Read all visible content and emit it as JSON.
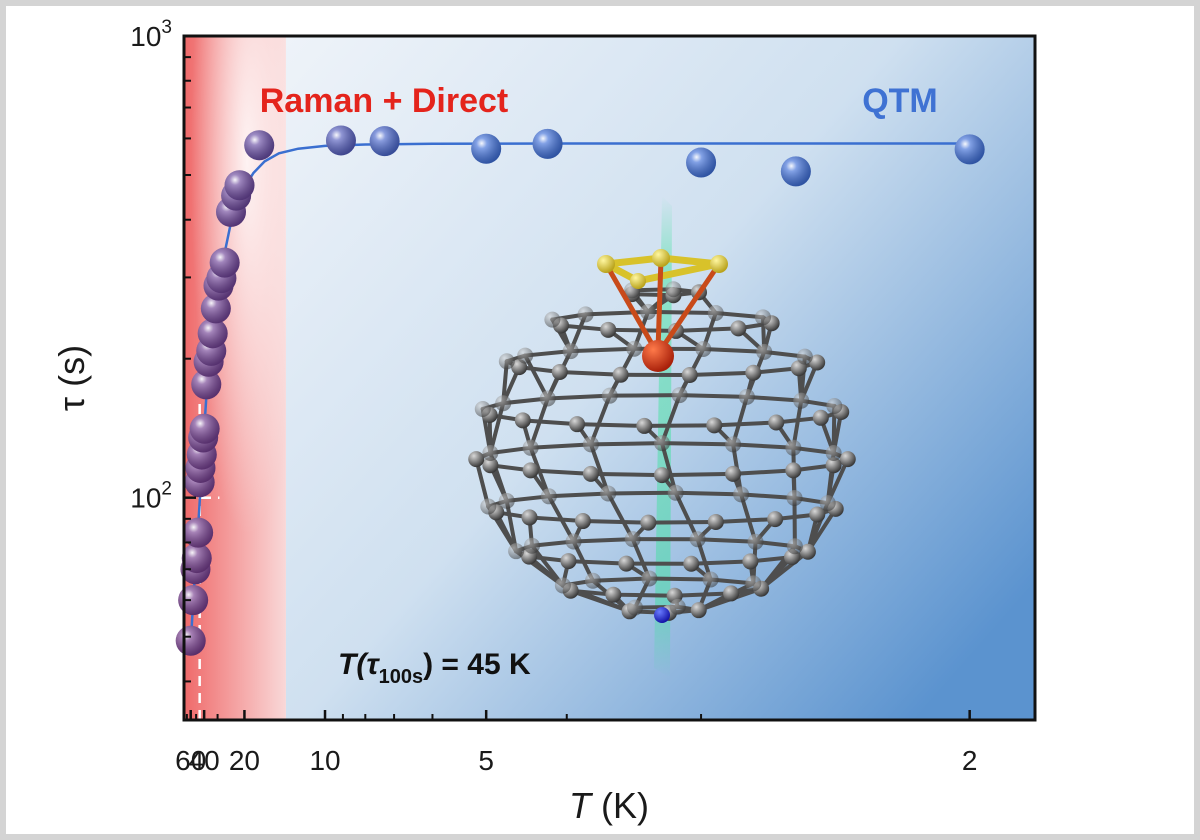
{
  "chart_data": {
    "type": "scatter",
    "title": "",
    "xlabel": "T (K)",
    "xlabel_italic_symbol": "T",
    "xlabel_unit": "(K)",
    "ylabel": "τ (s)",
    "x_scale": "reciprocal",
    "y_scale": "log",
    "xlim": [
      80,
      1.85
    ],
    "ylim": [
      33,
      1000
    ],
    "x_ticks": [
      60,
      40,
      20,
      10,
      5,
      2
    ],
    "x_tick_labels": [
      "60",
      "40",
      "20",
      "10",
      "5",
      "2"
    ],
    "y_ticks": [
      100,
      1000
    ],
    "y_tick_labels": [
      {
        "base": "10",
        "exp": "2"
      },
      {
        "base": "10",
        "exp": "3"
      }
    ],
    "grid": false,
    "regions": [
      {
        "label": "Raman + Direct",
        "color": "#e8322a",
        "x_from": 80,
        "x_to": 13.2
      },
      {
        "label": "QTM",
        "color": "#4a7fd0",
        "x_from": 13.2,
        "x_to": 1.85
      }
    ],
    "series": [
      {
        "name": "tau",
        "x": [
          60,
          55,
          51,
          49,
          47,
          45,
          44,
          42.5,
          41,
          39.5,
          38,
          36,
          34,
          33,
          31,
          29.5,
          28,
          26.5,
          24,
          22.3,
          21.3,
          16.9,
          9.1,
          7.3,
          5.0,
          4.2,
          3.0,
          2.55,
          2.0
        ],
        "y": [
          49,
          60,
          70,
          74,
          84,
          108,
          116,
          124,
          135,
          141,
          176,
          197,
          208,
          227,
          257,
          288,
          299,
          323,
          416,
          451,
          475,
          580,
          594,
          592,
          570,
          584,
          532,
          509,
          568
        ],
        "marker_color_start": "#7a3d8c",
        "marker_color_end": "#3f6fd8"
      },
      {
        "name": "fit",
        "type": "line",
        "color": "#3a6fd0",
        "x": [
          60,
          55,
          50,
          46,
          42,
          38,
          34,
          30,
          27,
          24,
          21,
          18,
          16,
          14,
          12,
          10,
          8,
          6,
          4,
          3,
          2
        ],
        "y": [
          48,
          60,
          74,
          92,
          120,
          165,
          215,
          275,
          330,
          395,
          455,
          505,
          535,
          557,
          570,
          578,
          582,
          584,
          585,
          585,
          585
        ]
      }
    ],
    "guides": [
      {
        "orientation": "vertical",
        "x": 45,
        "y_to": 180
      },
      {
        "orientation": "horizontal",
        "y": 100,
        "x_to": 29
      }
    ],
    "annotation": {
      "prefix": "T(",
      "tau": "τ",
      "sub": "100s",
      "suffix": ") = 45 K"
    }
  }
}
